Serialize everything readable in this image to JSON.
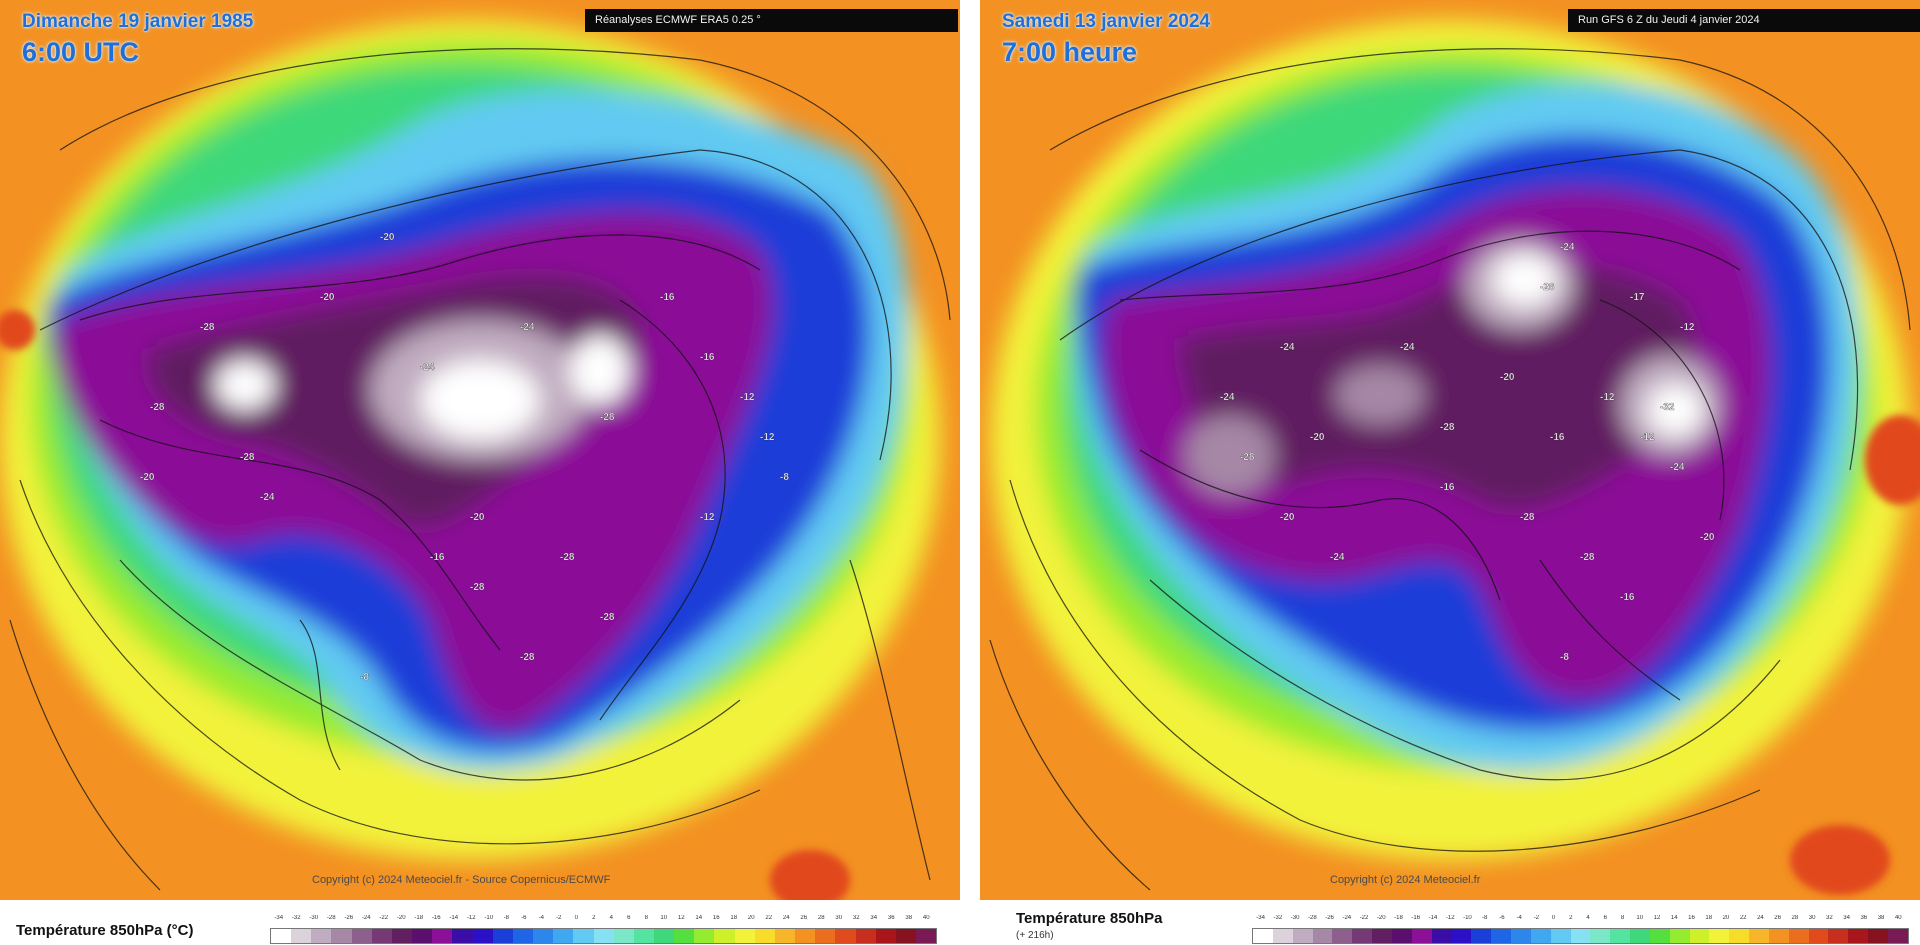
{
  "palette": [
    "#ffffff",
    "#dcd2dc",
    "#c0acc0",
    "#a688a6",
    "#8c5f8c",
    "#753a75",
    "#611e61",
    "#5a0f6e",
    "#8b0f97",
    "#3a0ea6",
    "#2c10c8",
    "#1c3ed8",
    "#1f66e6",
    "#2d86ec",
    "#40a8f0",
    "#62caf2",
    "#86e2f2",
    "#7ae8c8",
    "#54e3a0",
    "#3ed87a",
    "#55df3f",
    "#95eb2e",
    "#cdf02a",
    "#f2f23a",
    "#f7dc2a",
    "#f7b52a",
    "#f39122",
    "#eb6d1e",
    "#e14a1d",
    "#c72e1d",
    "#a8161b",
    "#86121f",
    "#7a1a55"
  ],
  "left": {
    "date": "Dimanche 19 janvier 1985",
    "time": "6:00 UTC",
    "source": "Réanalyses ECMWF ERA5 0.25 °",
    "copyright": "Copyright (c) 2024 Meteociel.fr - Source Copernicus/ECMWF",
    "legend_title": "Température 850hPa (°C)"
  },
  "right": {
    "date": "Samedi 13 janvier 2024",
    "time": "7:00 heure",
    "source": "Run GFS 6 Z du Jeudi 4 janvier 2024",
    "copyright": "Copyright (c) 2024 Meteociel.fr",
    "legend_title": "Température 850hPa",
    "legend_sub": "(+ 216h)"
  },
  "legend_ticks": [
    "-34",
    "-32",
    "-30",
    "-28",
    "-26",
    "-24",
    "-22",
    "-20",
    "-18",
    "-16",
    "-14",
    "-12",
    "-10",
    "-8",
    "-6",
    "-4",
    "-2",
    "0",
    "2",
    "4",
    "6",
    "8",
    "10",
    "12",
    "14",
    "16",
    "18",
    "20",
    "22",
    "24",
    "26",
    "28",
    "30",
    "32",
    "34",
    "36",
    "38",
    "40"
  ],
  "isotherm_labels_left": [
    "-28",
    "-28",
    "-28",
    "-20",
    "-24",
    "-24",
    "-28",
    "-16",
    "-16",
    "-12",
    "-12",
    "-8",
    "-28",
    "-28",
    "-28",
    "-20",
    "-16",
    "-8",
    "-12",
    "-20",
    "-20",
    "-24",
    "-28"
  ],
  "isotherm_labels_right": [
    "-24",
    "-24",
    "-28",
    "-20",
    "-24",
    "-28",
    "-20",
    "-16",
    "-12",
    "-12",
    "-28",
    "-28",
    "-24",
    "-20",
    "-16",
    "-8",
    "-12",
    "-17",
    "-24",
    "-28",
    "-32",
    "-24",
    "-20",
    "-16"
  ]
}
